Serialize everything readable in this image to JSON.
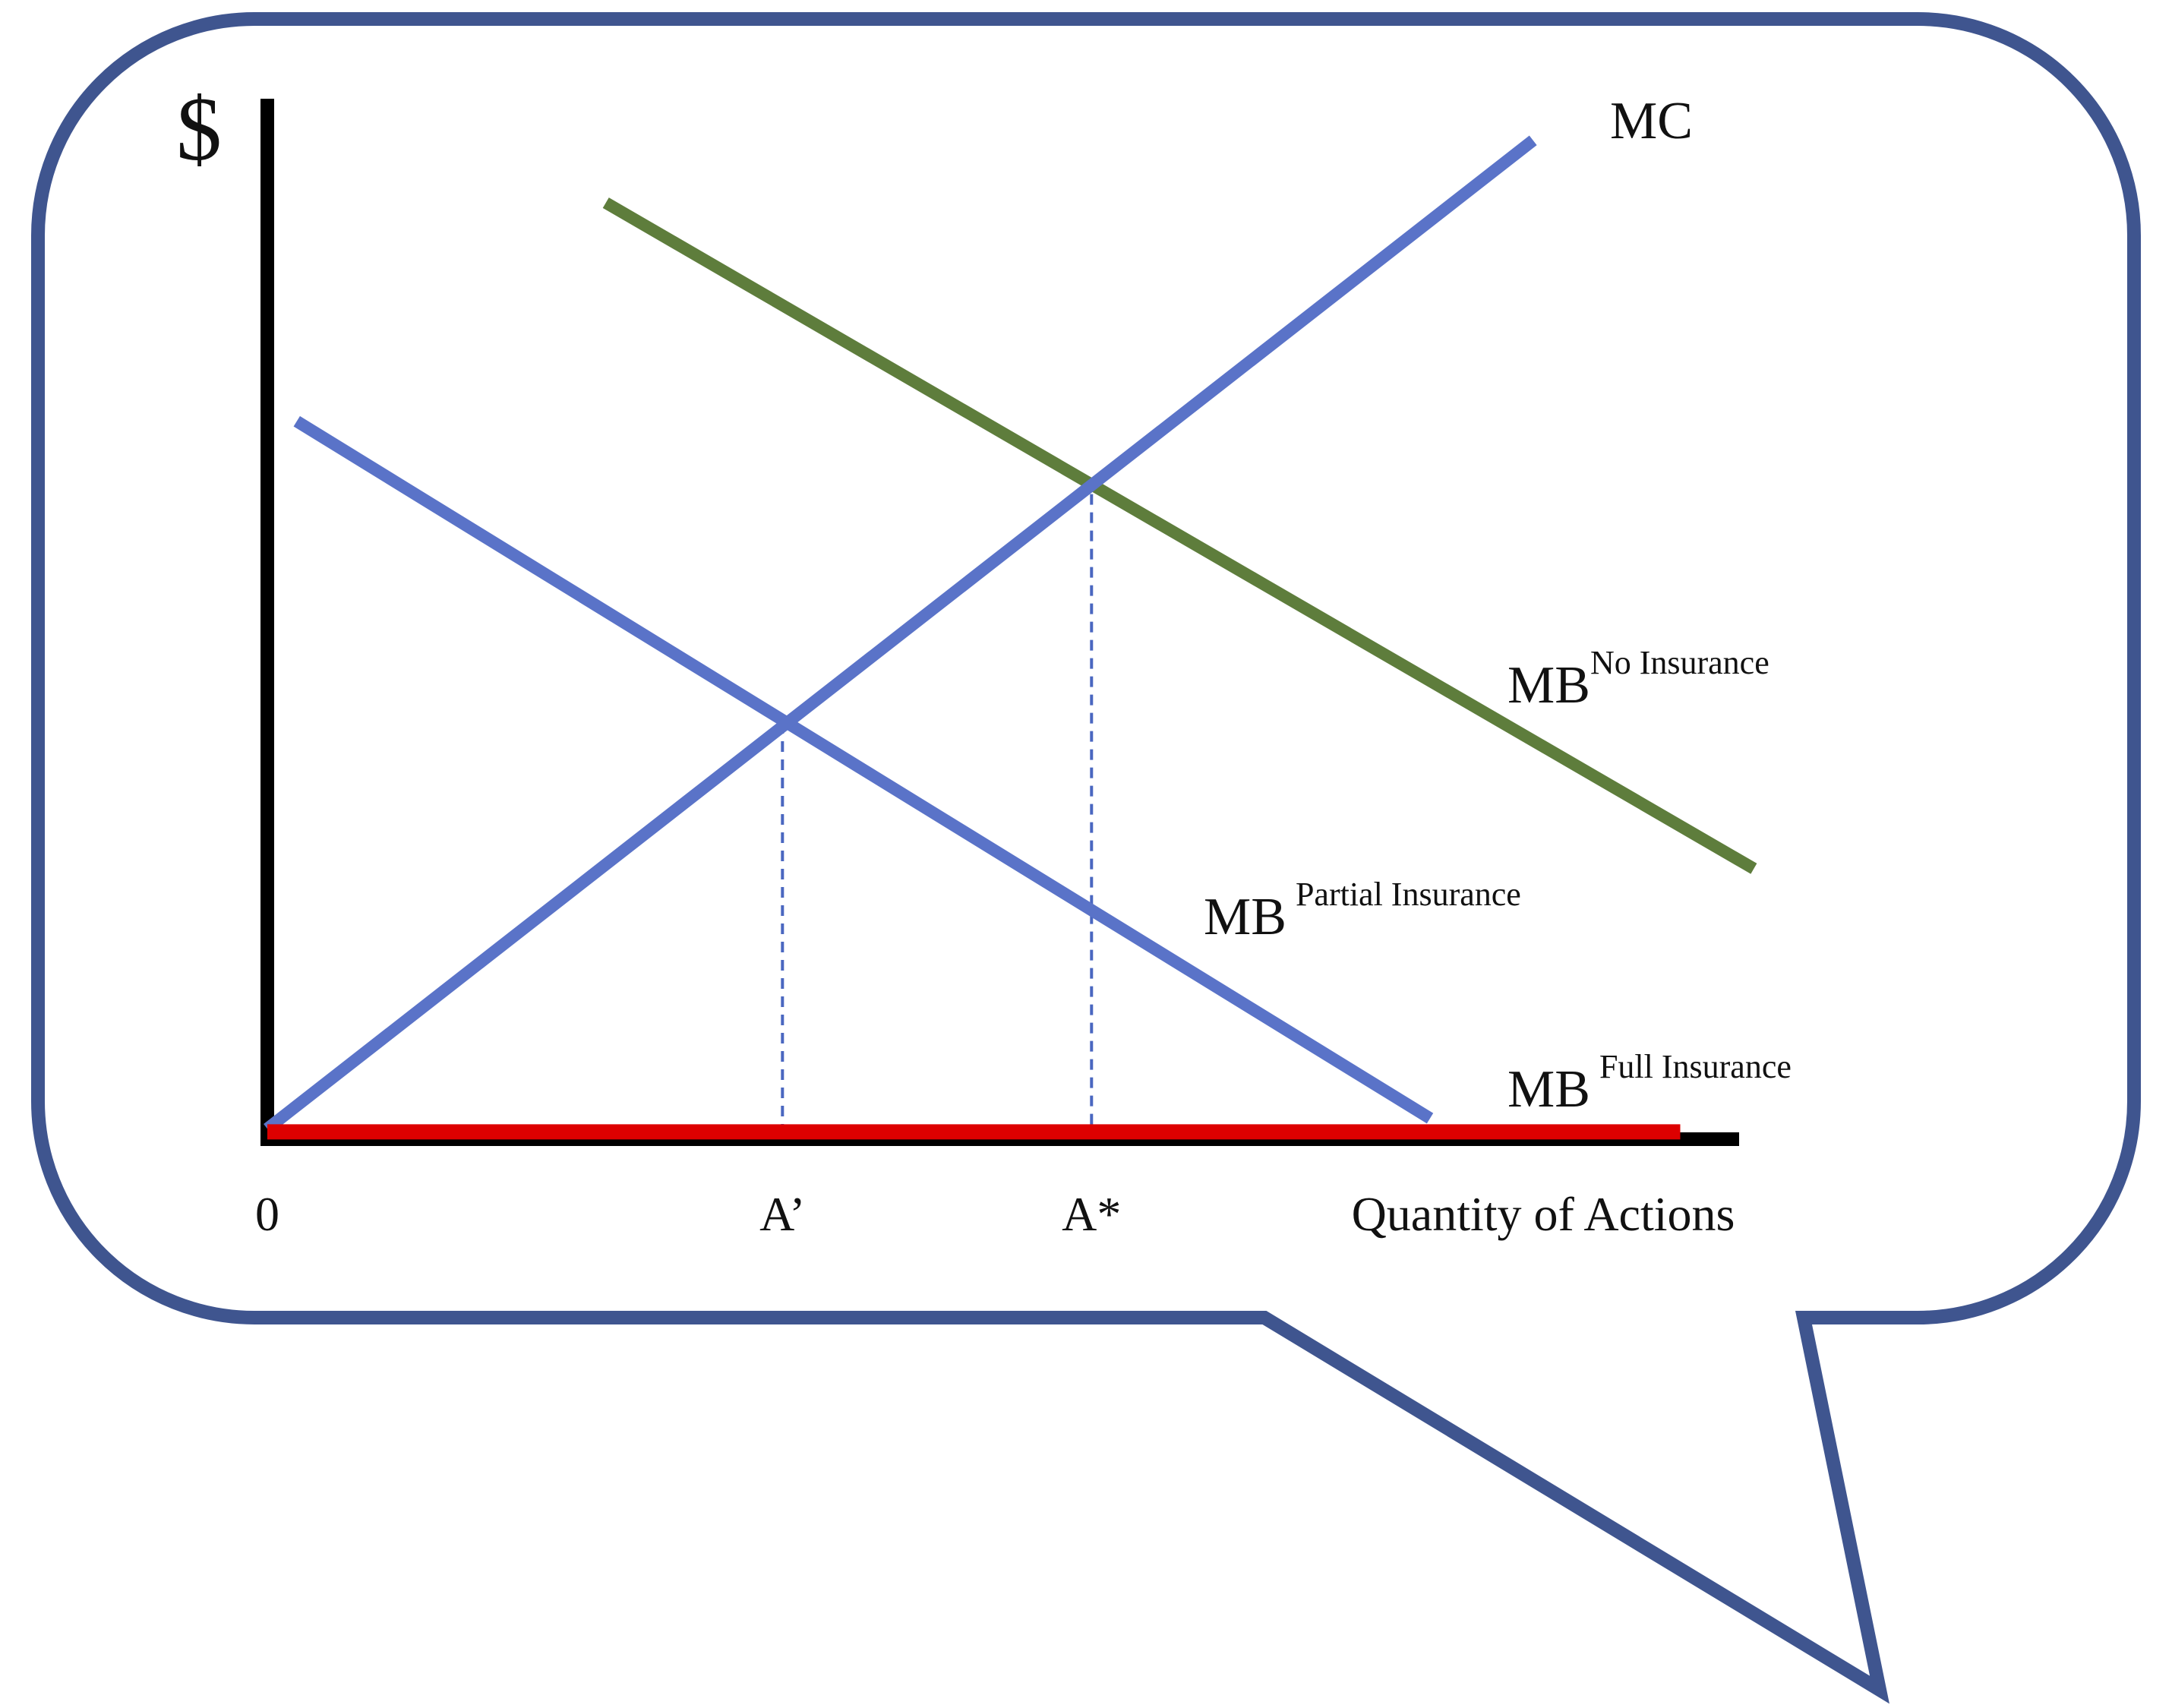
{
  "chart_data": {
    "type": "line",
    "title": "",
    "ylabel": "$",
    "xlabel": "Quantity of Actions",
    "xlim": [
      0,
      10
    ],
    "ylim": [
      0,
      10
    ],
    "grid": false,
    "legend": "none",
    "x_ticks": [
      {
        "label": "0",
        "x": 0
      },
      {
        "label": "A’",
        "x": 3.5
      },
      {
        "label": "A*",
        "x": 5.6
      }
    ],
    "series": [
      {
        "name": "MC",
        "color": "#5a73c8",
        "points": [
          [
            0,
            0.1
          ],
          [
            8.6,
            9.6
          ]
        ]
      },
      {
        "name": "MB",
        "superscript": "No Insurance",
        "color": "#5e7d3c",
        "points": [
          [
            2.3,
            9.0
          ],
          [
            10.1,
            2.6
          ]
        ]
      },
      {
        "name": "MB",
        "superscript": "Partial Insurance",
        "color": "#5a73c8",
        "points": [
          [
            0.2,
            6.9
          ],
          [
            7.9,
            0.2
          ]
        ]
      },
      {
        "name": "MB",
        "superscript": "Full Insurance",
        "color": "#dd0000",
        "points": [
          [
            0,
            0.07
          ],
          [
            9.6,
            0.07
          ]
        ]
      }
    ],
    "reference_lines": [
      {
        "x": 3.5,
        "y_top": 4.0
      },
      {
        "x": 5.6,
        "y_top": 6.2
      }
    ]
  },
  "colors": {
    "bubble_border": "#3f558f",
    "axis": "#000000",
    "guide": "#4a67c0"
  }
}
